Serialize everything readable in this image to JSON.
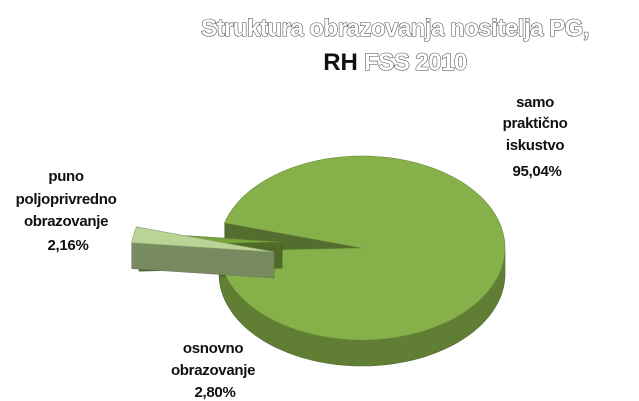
{
  "chart_data": {
    "type": "pie",
    "title_line1": "Struktura obrazovanja nositelja PG,",
    "title_line2_bold": "RH",
    "title_line2_rest": " FSS 2010",
    "slices": [
      {
        "label_lines": [
          "samo",
          "praktično",
          "iskustvo"
        ],
        "value_text": "95,04%",
        "value": 95.04,
        "color": "#86b04a"
      },
      {
        "label_lines": [
          "osnovno",
          "obrazovanje"
        ],
        "value_text": "2,80%",
        "value": 2.8,
        "color": "#b9d494"
      },
      {
        "label_lines": [
          "puno",
          "poljoprivredno",
          "obrazovanje"
        ],
        "value_text": "2,16%",
        "value": 2.16,
        "color": "#7aa43c"
      }
    ]
  }
}
